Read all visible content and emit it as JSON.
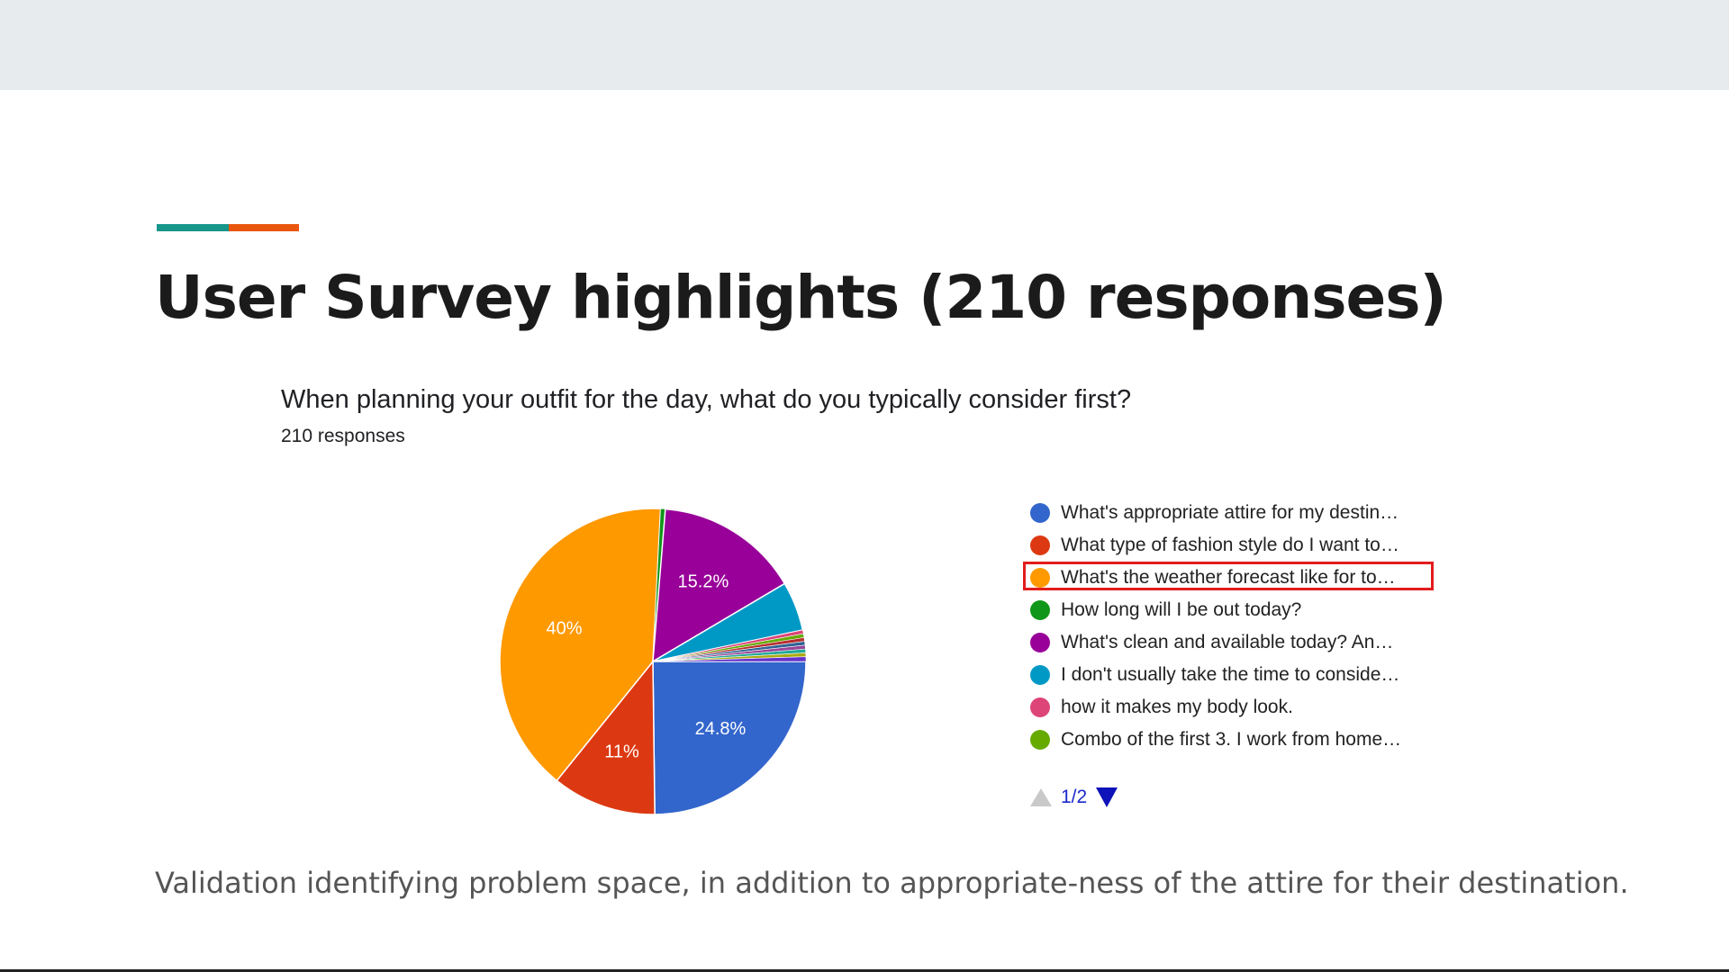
{
  "slide": {
    "title": "User Survey highlights (210 responses)",
    "footer": "Validation identifying problem space, in addition to appropriate-ness of the attire for their destination.",
    "accent_colors": [
      "#17968a",
      "#e9560e"
    ]
  },
  "question": {
    "text": "When planning your outfit for the day, what do you typically consider first?",
    "responses": "210 responses"
  },
  "legend": {
    "items": [
      {
        "label": "What's appropriate attire for my destin…",
        "color": "#3366cc",
        "highlighted": false
      },
      {
        "label": "What type of fashion style do I want to…",
        "color": "#dc3912",
        "highlighted": false
      },
      {
        "label": "What's the weather forecast like for to…",
        "color": "#ff9900",
        "highlighted": true
      },
      {
        "label": "How long will I be out today?",
        "color": "#109618",
        "highlighted": false
      },
      {
        "label": "What's clean and available today? An…",
        "color": "#990099",
        "highlighted": false
      },
      {
        "label": "I don't usually take the time to conside…",
        "color": "#0099c6",
        "highlighted": false
      },
      {
        "label": "how it makes my body look.",
        "color": "#dd4477",
        "highlighted": false
      },
      {
        "label": "Combo of the first 3. I work from home…",
        "color": "#66aa00",
        "highlighted": false
      }
    ],
    "pager": "1/2"
  },
  "chart_data": {
    "type": "pie",
    "slices": [
      {
        "value": 24.8,
        "color": "#3366cc",
        "label": "24.8%"
      },
      {
        "value": 11.0,
        "color": "#dc3912",
        "label": "11%"
      },
      {
        "value": 40.0,
        "color": "#ff9900",
        "label": "40%"
      },
      {
        "value": 0.5,
        "color": "#109618",
        "label": ""
      },
      {
        "value": 15.2,
        "color": "#990099",
        "label": "15.2%"
      },
      {
        "value": 5.2,
        "color": "#0099c6",
        "label": ""
      },
      {
        "value": 0.4,
        "color": "#dd4477",
        "label": ""
      },
      {
        "value": 0.4,
        "color": "#66aa00",
        "label": ""
      },
      {
        "value": 0.4,
        "color": "#b82e2e",
        "label": ""
      },
      {
        "value": 0.4,
        "color": "#316395",
        "label": ""
      },
      {
        "value": 0.4,
        "color": "#994499",
        "label": ""
      },
      {
        "value": 0.4,
        "color": "#22aa99",
        "label": ""
      },
      {
        "value": 0.4,
        "color": "#aaaa11",
        "label": ""
      },
      {
        "value": 0.5,
        "color": "#6633cc",
        "label": ""
      }
    ],
    "start": "3 o'clock, clockwise",
    "legend_position": "right"
  }
}
